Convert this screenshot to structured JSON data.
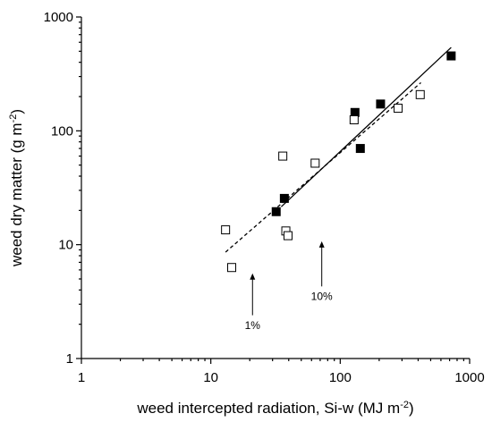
{
  "chart_data": {
    "type": "scatter",
    "title": "",
    "xlabel": "weed intercepted radiation, Si-w (MJ m",
    "xlabel_sup": "-2",
    "xlabel_end": ")",
    "ylabel": "weed dry matter (g m",
    "ylabel_sup": "-2",
    "ylabel_end": ")",
    "xscale": "log",
    "yscale": "log",
    "xlim": [
      1,
      1000
    ],
    "ylim": [
      1,
      1000
    ],
    "xticks": [
      1,
      10,
      100,
      1000
    ],
    "yticks": [
      1,
      10,
      100,
      1000
    ],
    "xtick_labels": [
      "1",
      "10",
      "100",
      "1000"
    ],
    "ytick_labels": [
      "1",
      "10",
      "100",
      "1000"
    ],
    "grid": false,
    "legend": "none",
    "series": [
      {
        "marker": "filled-square",
        "color": "#000000",
        "points": [
          {
            "x": 32,
            "y": 19.5
          },
          {
            "x": 37,
            "y": 25.5
          },
          {
            "x": 130,
            "y": 145
          },
          {
            "x": 143,
            "y": 70
          },
          {
            "x": 205,
            "y": 172
          },
          {
            "x": 720,
            "y": 455
          }
        ],
        "fit": {
          "style": "solid",
          "x": [
            35,
            720
          ],
          "y": [
            21.5,
            540
          ]
        }
      },
      {
        "marker": "open-square",
        "color": "#000000",
        "points": [
          {
            "x": 13,
            "y": 13.5
          },
          {
            "x": 14.5,
            "y": 6.3
          },
          {
            "x": 36,
            "y": 60
          },
          {
            "x": 38,
            "y": 13.2
          },
          {
            "x": 39.5,
            "y": 12
          },
          {
            "x": 64,
            "y": 52
          },
          {
            "x": 128,
            "y": 125
          },
          {
            "x": 280,
            "y": 158
          },
          {
            "x": 415,
            "y": 208
          }
        ],
        "fit": {
          "style": "dashed",
          "x": [
            13,
            420
          ],
          "y": [
            8.6,
            265
          ]
        }
      }
    ],
    "annotations": [
      {
        "label": "1%",
        "x": 21,
        "arrow_tip_y": 5.6,
        "arrow_tail_y": 2.4,
        "label_y": 1.95
      },
      {
        "label": "10%",
        "x": 72,
        "arrow_tip_y": 10.7,
        "arrow_tail_y": 4.3,
        "label_y": 3.5
      }
    ]
  }
}
